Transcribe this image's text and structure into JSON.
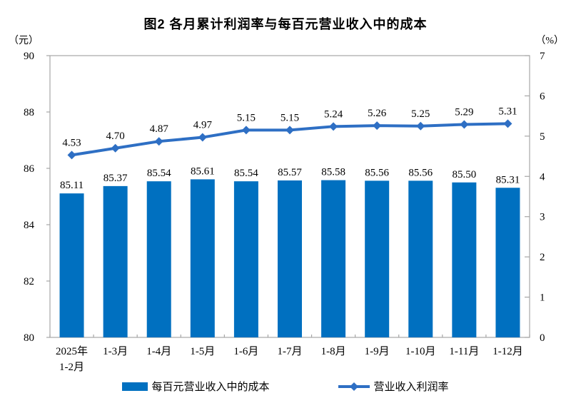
{
  "chart": {
    "title": "图2 各月累计利润率与每百元营业收入中的成本",
    "left_axis_unit": "（元）",
    "right_axis_unit": "（%）",
    "legend": {
      "bar_label": "每百元营业收入中的成本",
      "line_label": "营业收入利润率"
    }
  },
  "chart_data": {
    "type": "bar+line",
    "title": "图2 各月累计利润率与每百元营业收入中的成本",
    "categories": [
      "2025年\n1-2月",
      "1-3月",
      "1-4月",
      "1-5月",
      "1-6月",
      "1-7月",
      "1-8月",
      "1-9月",
      "1-10月",
      "1-11月",
      "1-12月"
    ],
    "series": [
      {
        "name": "每百元营业收入中的成本",
        "type": "bar",
        "axis": "left",
        "color": "#0070C0",
        "values": [
          85.11,
          85.37,
          85.54,
          85.61,
          85.54,
          85.57,
          85.58,
          85.56,
          85.56,
          85.5,
          85.31
        ]
      },
      {
        "name": "营业收入利润率",
        "type": "line",
        "axis": "right",
        "color": "#2E6FC4",
        "values": [
          4.53,
          4.7,
          4.87,
          4.97,
          5.15,
          5.15,
          5.24,
          5.26,
          5.25,
          5.29,
          5.31
        ]
      }
    ],
    "left_axis": {
      "label": "（元）",
      "min": 80,
      "max": 90,
      "ticks": [
        90,
        88,
        86,
        84,
        82,
        80
      ]
    },
    "right_axis": {
      "label": "（%）",
      "min": 0,
      "max": 7,
      "ticks": [
        7,
        6,
        5,
        4,
        3,
        2,
        1,
        0
      ]
    },
    "grid": false,
    "legend_position": "bottom",
    "axis_color": "#A6A6A6"
  }
}
